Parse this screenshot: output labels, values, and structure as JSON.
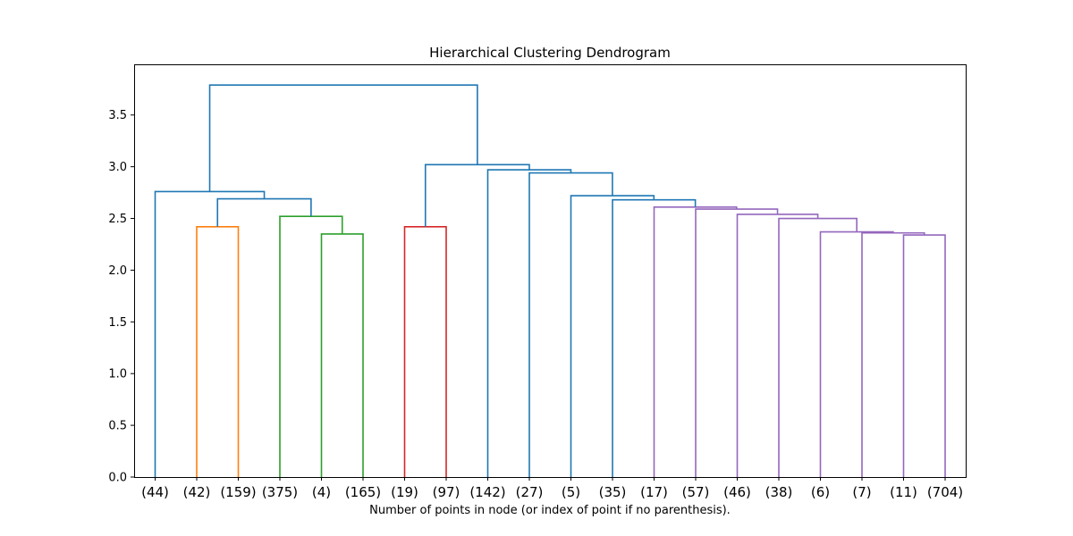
{
  "chart_data": {
    "type": "dendrogram",
    "title": "Hierarchical Clustering Dendrogram",
    "xlabel": "Number of points in node (or index of point if no parenthesis).",
    "ylabel": "",
    "ylim": [
      0,
      3.99
    ],
    "yticks": [
      "0.0",
      "0.5",
      "1.0",
      "1.5",
      "2.0",
      "2.5",
      "3.0",
      "3.5"
    ],
    "leaves": [
      "(44)",
      "(42)",
      "(159)",
      "(375)",
      "(4)",
      "(165)",
      "(19)",
      "(97)",
      "(142)",
      "(27)",
      "(5)",
      "(35)",
      "(17)",
      "(57)",
      "(46)",
      "(38)",
      "(6)",
      "(7)",
      "(11)",
      "(704)"
    ],
    "colors": {
      "above": "#1f77b4",
      "orange": "#ff7f0e",
      "green": "#2ca02c",
      "red": "#d62728",
      "purple": "#9467bd"
    },
    "links": [
      {
        "xs": [
          1,
          1,
          2,
          2
        ],
        "ys": [
          0,
          2.42,
          2.42,
          0
        ],
        "color": "orange"
      },
      {
        "xs": [
          4,
          4,
          5,
          5
        ],
        "ys": [
          0,
          2.35,
          2.35,
          0
        ],
        "color": "green"
      },
      {
        "xs": [
          3,
          3,
          4.5,
          4.5
        ],
        "ys": [
          0,
          2.52,
          2.52,
          2.35
        ],
        "color": "green"
      },
      {
        "xs": [
          1.5,
          1.5,
          3.75,
          3.75
        ],
        "ys": [
          2.42,
          2.69,
          2.69,
          2.52
        ],
        "color": "above"
      },
      {
        "xs": [
          0,
          0,
          2.625,
          2.625
        ],
        "ys": [
          0,
          2.76,
          2.76,
          2.69
        ],
        "color": "above"
      },
      {
        "xs": [
          6,
          6,
          7,
          7
        ],
        "ys": [
          0,
          2.42,
          2.42,
          0
        ],
        "color": "red"
      },
      {
        "xs": [
          18,
          18,
          19,
          19
        ],
        "ys": [
          0,
          2.34,
          2.34,
          0
        ],
        "color": "purple"
      },
      {
        "xs": [
          17,
          17,
          18.5,
          18.5
        ],
        "ys": [
          0,
          2.36,
          2.36,
          2.34
        ],
        "color": "purple"
      },
      {
        "xs": [
          16,
          16,
          17.75,
          17.75
        ],
        "ys": [
          0,
          2.37,
          2.37,
          2.36
        ],
        "color": "purple"
      },
      {
        "xs": [
          15,
          15,
          16.875,
          16.875
        ],
        "ys": [
          0,
          2.5,
          2.5,
          2.37
        ],
        "color": "purple"
      },
      {
        "xs": [
          14,
          14,
          15.9375,
          15.9375
        ],
        "ys": [
          0,
          2.54,
          2.54,
          2.5
        ],
        "color": "purple"
      },
      {
        "xs": [
          13,
          13,
          14.96875,
          14.96875
        ],
        "ys": [
          0,
          2.59,
          2.59,
          2.54
        ],
        "color": "purple"
      },
      {
        "xs": [
          12,
          12,
          13.984,
          13.984
        ],
        "ys": [
          0,
          2.61,
          2.61,
          2.59
        ],
        "color": "purple"
      },
      {
        "xs": [
          11,
          11,
          12.992,
          12.992
        ],
        "ys": [
          0,
          2.68,
          2.68,
          2.61
        ],
        "color": "above"
      },
      {
        "xs": [
          10,
          10,
          11.996,
          11.996
        ],
        "ys": [
          0,
          2.72,
          2.72,
          2.68
        ],
        "color": "above"
      },
      {
        "xs": [
          9,
          9,
          10.998,
          10.998
        ],
        "ys": [
          0,
          2.94,
          2.94,
          2.72
        ],
        "color": "above"
      },
      {
        "xs": [
          8,
          8,
          9.999,
          9.999
        ],
        "ys": [
          0,
          2.97,
          2.97,
          2.94
        ],
        "color": "above"
      },
      {
        "xs": [
          6.5,
          6.5,
          8.9995,
          8.9995
        ],
        "ys": [
          2.42,
          3.02,
          3.02,
          2.97
        ],
        "color": "above"
      },
      {
        "xs": [
          1.3125,
          1.3125,
          7.75,
          7.75
        ],
        "ys": [
          2.76,
          3.79,
          3.79,
          3.02
        ],
        "color": "above"
      }
    ]
  }
}
